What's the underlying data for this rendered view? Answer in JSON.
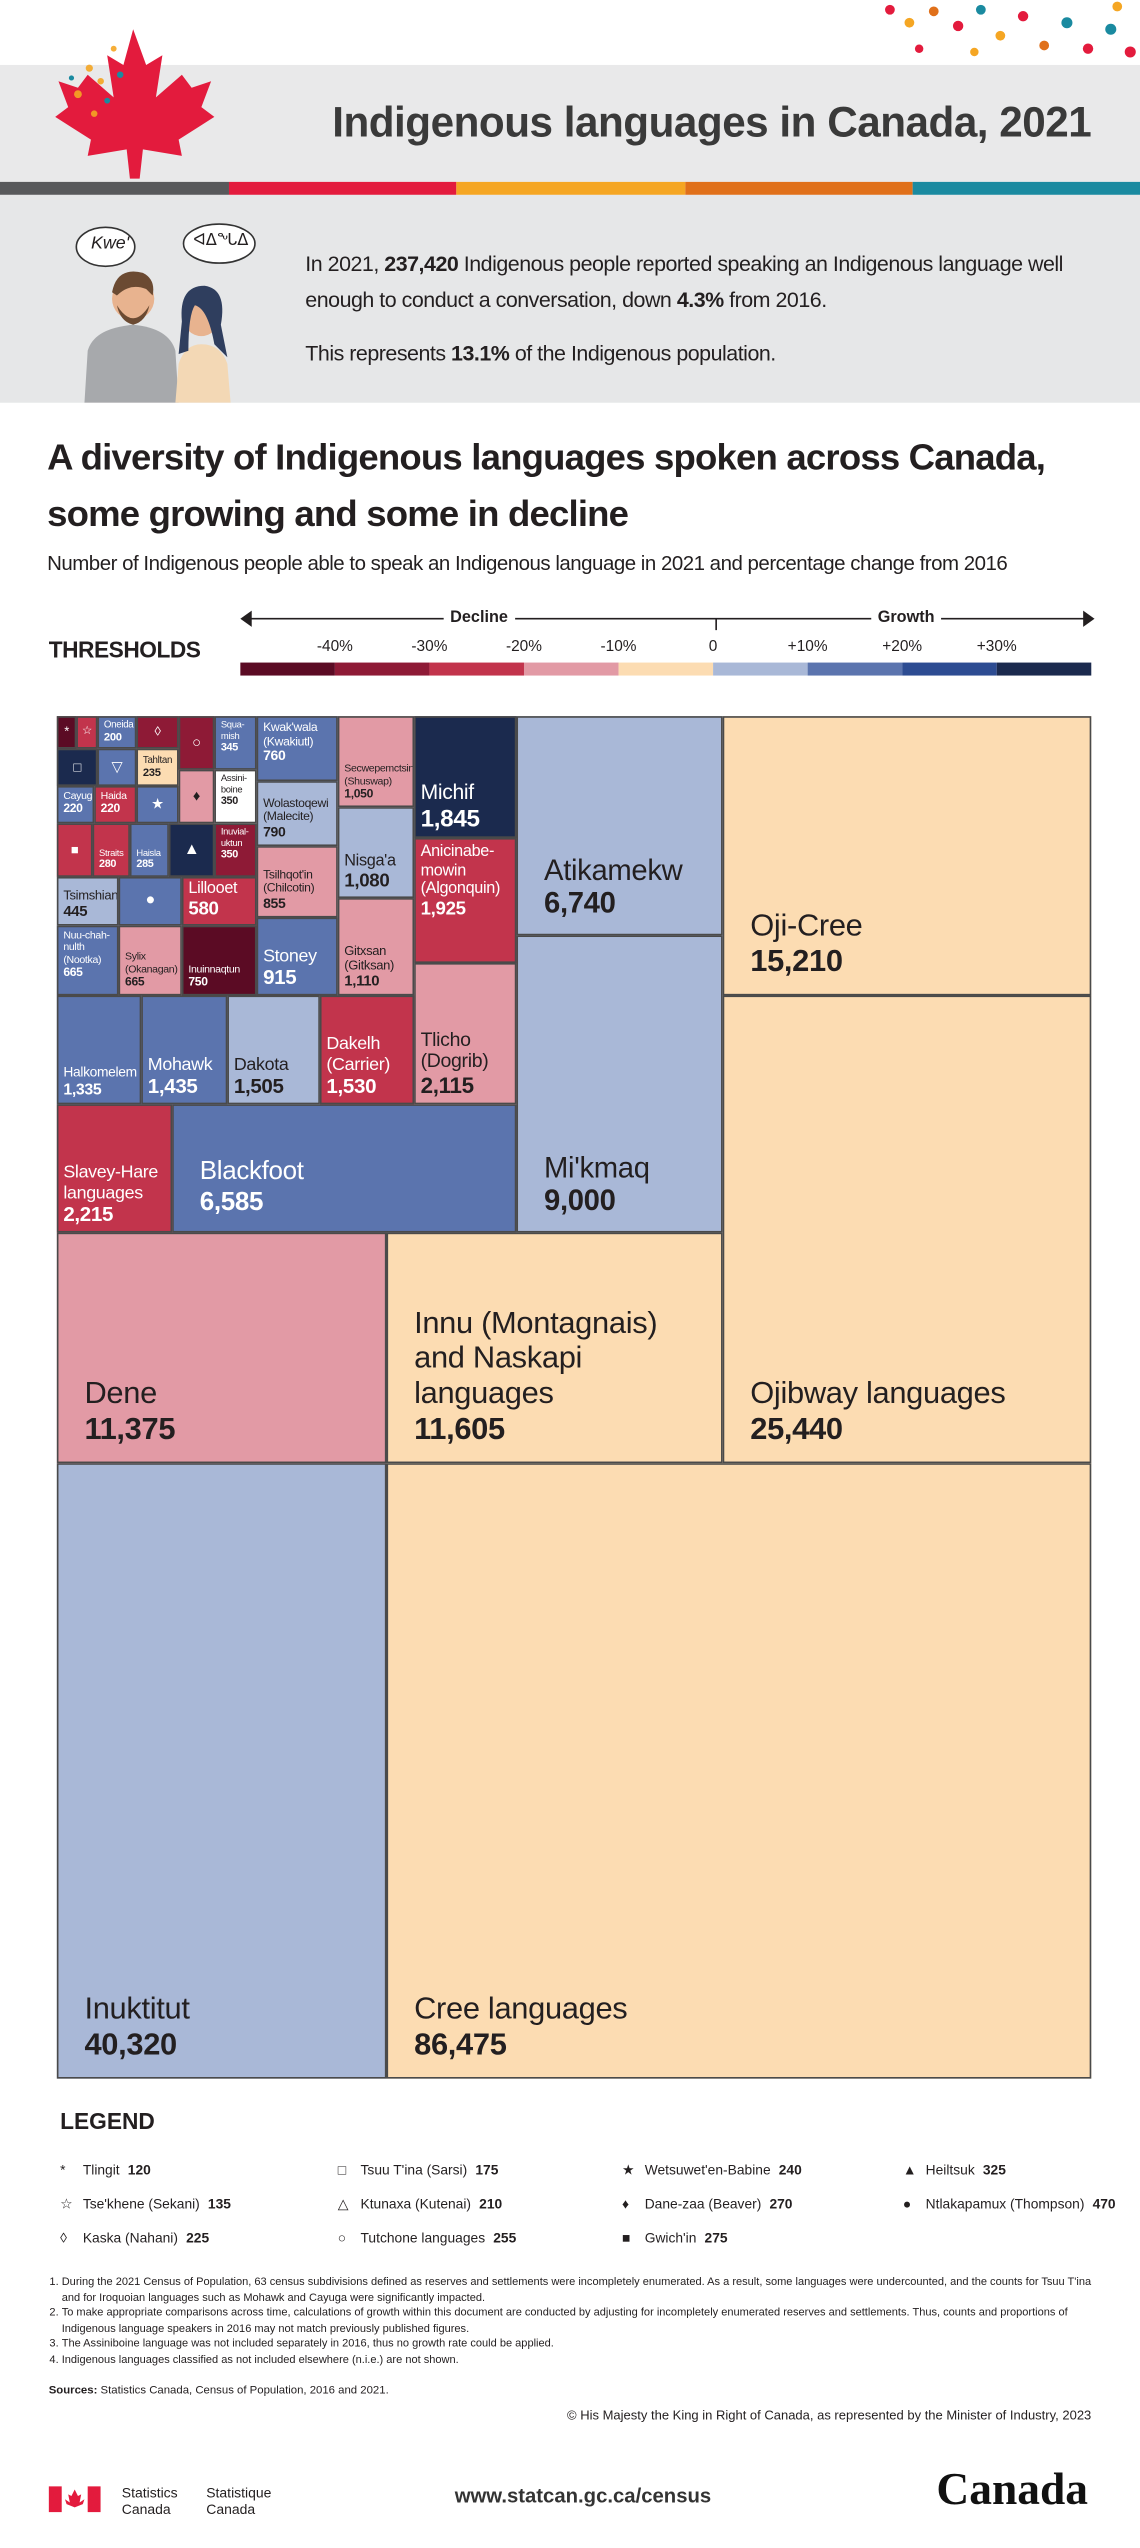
{
  "header": {
    "title": "Indigenous languages in Canada, 2021",
    "bubble_left": "Kwe'",
    "bubble_right": "ᐊᐃᖓᐃ"
  },
  "intro": {
    "p1": [
      "In 2021, ",
      "237,420",
      " Indigenous people reported speaking an Indigenous language well enough to conduct a conversation, down ",
      "4.3%",
      " from 2016."
    ],
    "p2": [
      "This represents ",
      "13.1%",
      " of the Indigenous population."
    ]
  },
  "section": {
    "title": "A diversity of Indigenous languages spoken across Canada, some growing and some in decline",
    "subtitle": "Number of Indigenous people able to speak an Indigenous language in 2021 and percentage change from 2016"
  },
  "thresholds": {
    "label": "THRESHOLDS",
    "decline": "Decline",
    "growth": "Growth",
    "ticks": [
      "-40%",
      "-30%",
      "-20%",
      "-10%",
      "0",
      "+10%",
      "+20%",
      "+30%"
    ],
    "colors": [
      "#5b0b24",
      "#8e1a36",
      "#c2344c",
      "#e29aa5",
      "#fcdcb2",
      "#a9b8d7",
      "#5b74ae",
      "#2d4c92",
      "#1b2a4e"
    ]
  },
  "treemap": [
    {
      "name": "Cree languages",
      "value": "86,475",
      "color": "#fcdcb2"
    },
    {
      "name": "Inuktitut",
      "value": "40,320",
      "color": "#a9b8d7"
    },
    {
      "name": "Ojibway languages",
      "value": "25,440",
      "color": "#fcdcb2"
    },
    {
      "name": "Oji-Cree",
      "value": "15,210",
      "color": "#fcdcb2"
    },
    {
      "name": "Innu (Montagnais) and Naskapi languages",
      "value": "11,605",
      "color": "#fcdcb2"
    },
    {
      "name": "Dene",
      "value": "11,375",
      "color": "#e29aa5"
    },
    {
      "name": "Mi'kmaq",
      "value": "9,000",
      "color": "#a9b8d7"
    },
    {
      "name": "Atikamekw",
      "value": "6,740",
      "color": "#a9b8d7"
    },
    {
      "name": "Blackfoot",
      "value": "6,585",
      "color": "#5b74ae"
    },
    {
      "name": "Slavey-Hare languages",
      "value": "2,215",
      "color": "#c2344c"
    },
    {
      "name": "Tlicho (Dogrib)",
      "value": "2,115",
      "color": "#e29aa5"
    },
    {
      "name": "Anicinabe-mowin (Algonquin)",
      "value": "1,925",
      "color": "#c2344c"
    },
    {
      "name": "Michif",
      "value": "1,845",
      "color": "#1b2a4e"
    },
    {
      "name": "Dakelh (Carrier)",
      "value": "1,530",
      "color": "#c2344c"
    },
    {
      "name": "Dakota",
      "value": "1,505",
      "color": "#a9b8d7"
    },
    {
      "name": "Mohawk",
      "value": "1,435",
      "color": "#5b74ae"
    },
    {
      "name": "Halkomelem",
      "value": "1,335",
      "color": "#5b74ae"
    },
    {
      "name": "Gitxsan (Gitksan)",
      "value": "1,110",
      "color": "#e29aa5"
    },
    {
      "name": "Nisga'a",
      "value": "1,080",
      "color": "#a9b8d7"
    },
    {
      "name": "Secwepemctsin (Shuswap)",
      "value": "1,050",
      "color": "#e29aa5"
    },
    {
      "name": "Stoney",
      "value": "915",
      "color": "#5b74ae"
    },
    {
      "name": "Tsilhqot'in (Chilcotin)",
      "value": "855",
      "color": "#e29aa5"
    },
    {
      "name": "Wolastoqewi (Malecite)",
      "value": "790",
      "color": "#a9b8d7"
    },
    {
      "name": "Kwak'wala (Kwakiutl)",
      "value": "760",
      "color": "#5b74ae"
    },
    {
      "name": "Inuinnaqtun",
      "value": "750",
      "color": "#5b0b24"
    },
    {
      "name": "Nuu-chah-nulth (Nootka)",
      "value": "665",
      "color": "#5b74ae"
    },
    {
      "name": "Sylix (Okanagan)",
      "value": "665",
      "color": "#e29aa5"
    },
    {
      "name": "Lillooet",
      "value": "580",
      "color": "#c2344c"
    },
    {
      "symbol": "●",
      "color": "#5b74ae"
    },
    {
      "name": "Tsimshian",
      "value": "445",
      "color": "#a9b8d7"
    },
    {
      "name": "Inuvial-uktun",
      "value": "350",
      "color": "#8e1a36"
    },
    {
      "name": "Assini-boine",
      "value": "350",
      "color": "#ffffff"
    },
    {
      "name": "Squa-mish",
      "value": "345",
      "color": "#5b74ae"
    },
    {
      "symbol": "▲",
      "color": "#1b2a4e"
    },
    {
      "name": "Haisla",
      "value": "285",
      "color": "#5b74ae"
    },
    {
      "name": "Straits",
      "value": "280",
      "color": "#c2344c"
    },
    {
      "symbol": "■",
      "color": "#c2344c"
    },
    {
      "symbol": "♦",
      "color": "#e29aa5"
    },
    {
      "symbol": "★",
      "color": "#5b74ae"
    },
    {
      "name": "Haida",
      "value": "220",
      "color": "#c2344c"
    },
    {
      "name": "Cayuga",
      "value": "220",
      "color": "#5b74ae"
    },
    {
      "name": "Tahltan",
      "value": "235",
      "color": "#fcdcb2"
    },
    {
      "symbol": "▽",
      "color": "#5b74ae"
    },
    {
      "symbol": "□",
      "color": "#1b2a4e"
    },
    {
      "symbol": "○",
      "color": "#8e1a36"
    },
    {
      "symbol": "◊",
      "color": "#8e1a36"
    },
    {
      "name": "Oneida",
      "value": "200",
      "color": "#5b74ae"
    },
    {
      "symbol": "☆",
      "color": "#c2344c"
    },
    {
      "symbol": "*",
      "color": "#5b0b24"
    }
  ],
  "legend": {
    "title": "LEGEND",
    "items": [
      {
        "symbol": "*",
        "name": "Tlingit",
        "value": "120"
      },
      {
        "symbol": "☆",
        "name": "Tse'khene (Sekani)",
        "value": "135"
      },
      {
        "symbol": "◊",
        "name": "Kaska (Nahani)",
        "value": "225"
      },
      {
        "symbol": "□",
        "name": "Tsuu T'ina (Sarsi)",
        "value": "175"
      },
      {
        "symbol": "△",
        "name": "Ktunaxa (Kutenai)",
        "value": "210"
      },
      {
        "symbol": "○",
        "name": "Tutchone languages",
        "value": "255"
      },
      {
        "symbol": "★",
        "name": "Wetsuwet'en-Babine",
        "value": "240"
      },
      {
        "symbol": "♦",
        "name": "Dane-zaa (Beaver)",
        "value": "270"
      },
      {
        "symbol": "■",
        "name": "Gwich'in",
        "value": "275"
      },
      {
        "symbol": "▲",
        "name": "Heiltsuk",
        "value": "325"
      },
      {
        "symbol": "●",
        "name": "Ntlakapamux (Thompson)",
        "value": "470"
      }
    ]
  },
  "notes": [
    "During the 2021 Census of Population, 63 census subdivisions defined as reserves and settlements were incompletely enumerated. As a result, some languages were undercounted, and the counts for Tsuu T'ina and for Iroquoian languages such as Mohawk and Cayuga were significantly impacted.",
    "To make appropriate comparisons across time, calculations of growth within this document are conducted by adjusting for incompletely enumerated reserves and settlements. Thus, counts and proportions of Indigenous language speakers in 2016 may not match previously published figures.",
    "The Assiniboine language was not included separately in 2016, thus no growth rate could be applied.",
    "Indigenous languages classified as not included elsewhere (n.i.e.) are not shown."
  ],
  "sources": {
    "label": "Sources:",
    "text": "Statistics Canada, Census of Population, 2016 and 2021."
  },
  "copyright": "© His Majesty the King in Right of Canada, as represented by the Minister of Industry, 2023",
  "footer": {
    "agency_en": "Statistics Canada",
    "agency_fr": "Statistique Canada",
    "url": "www.statcan.gc.ca/census",
    "wordmark": "Canada"
  }
}
